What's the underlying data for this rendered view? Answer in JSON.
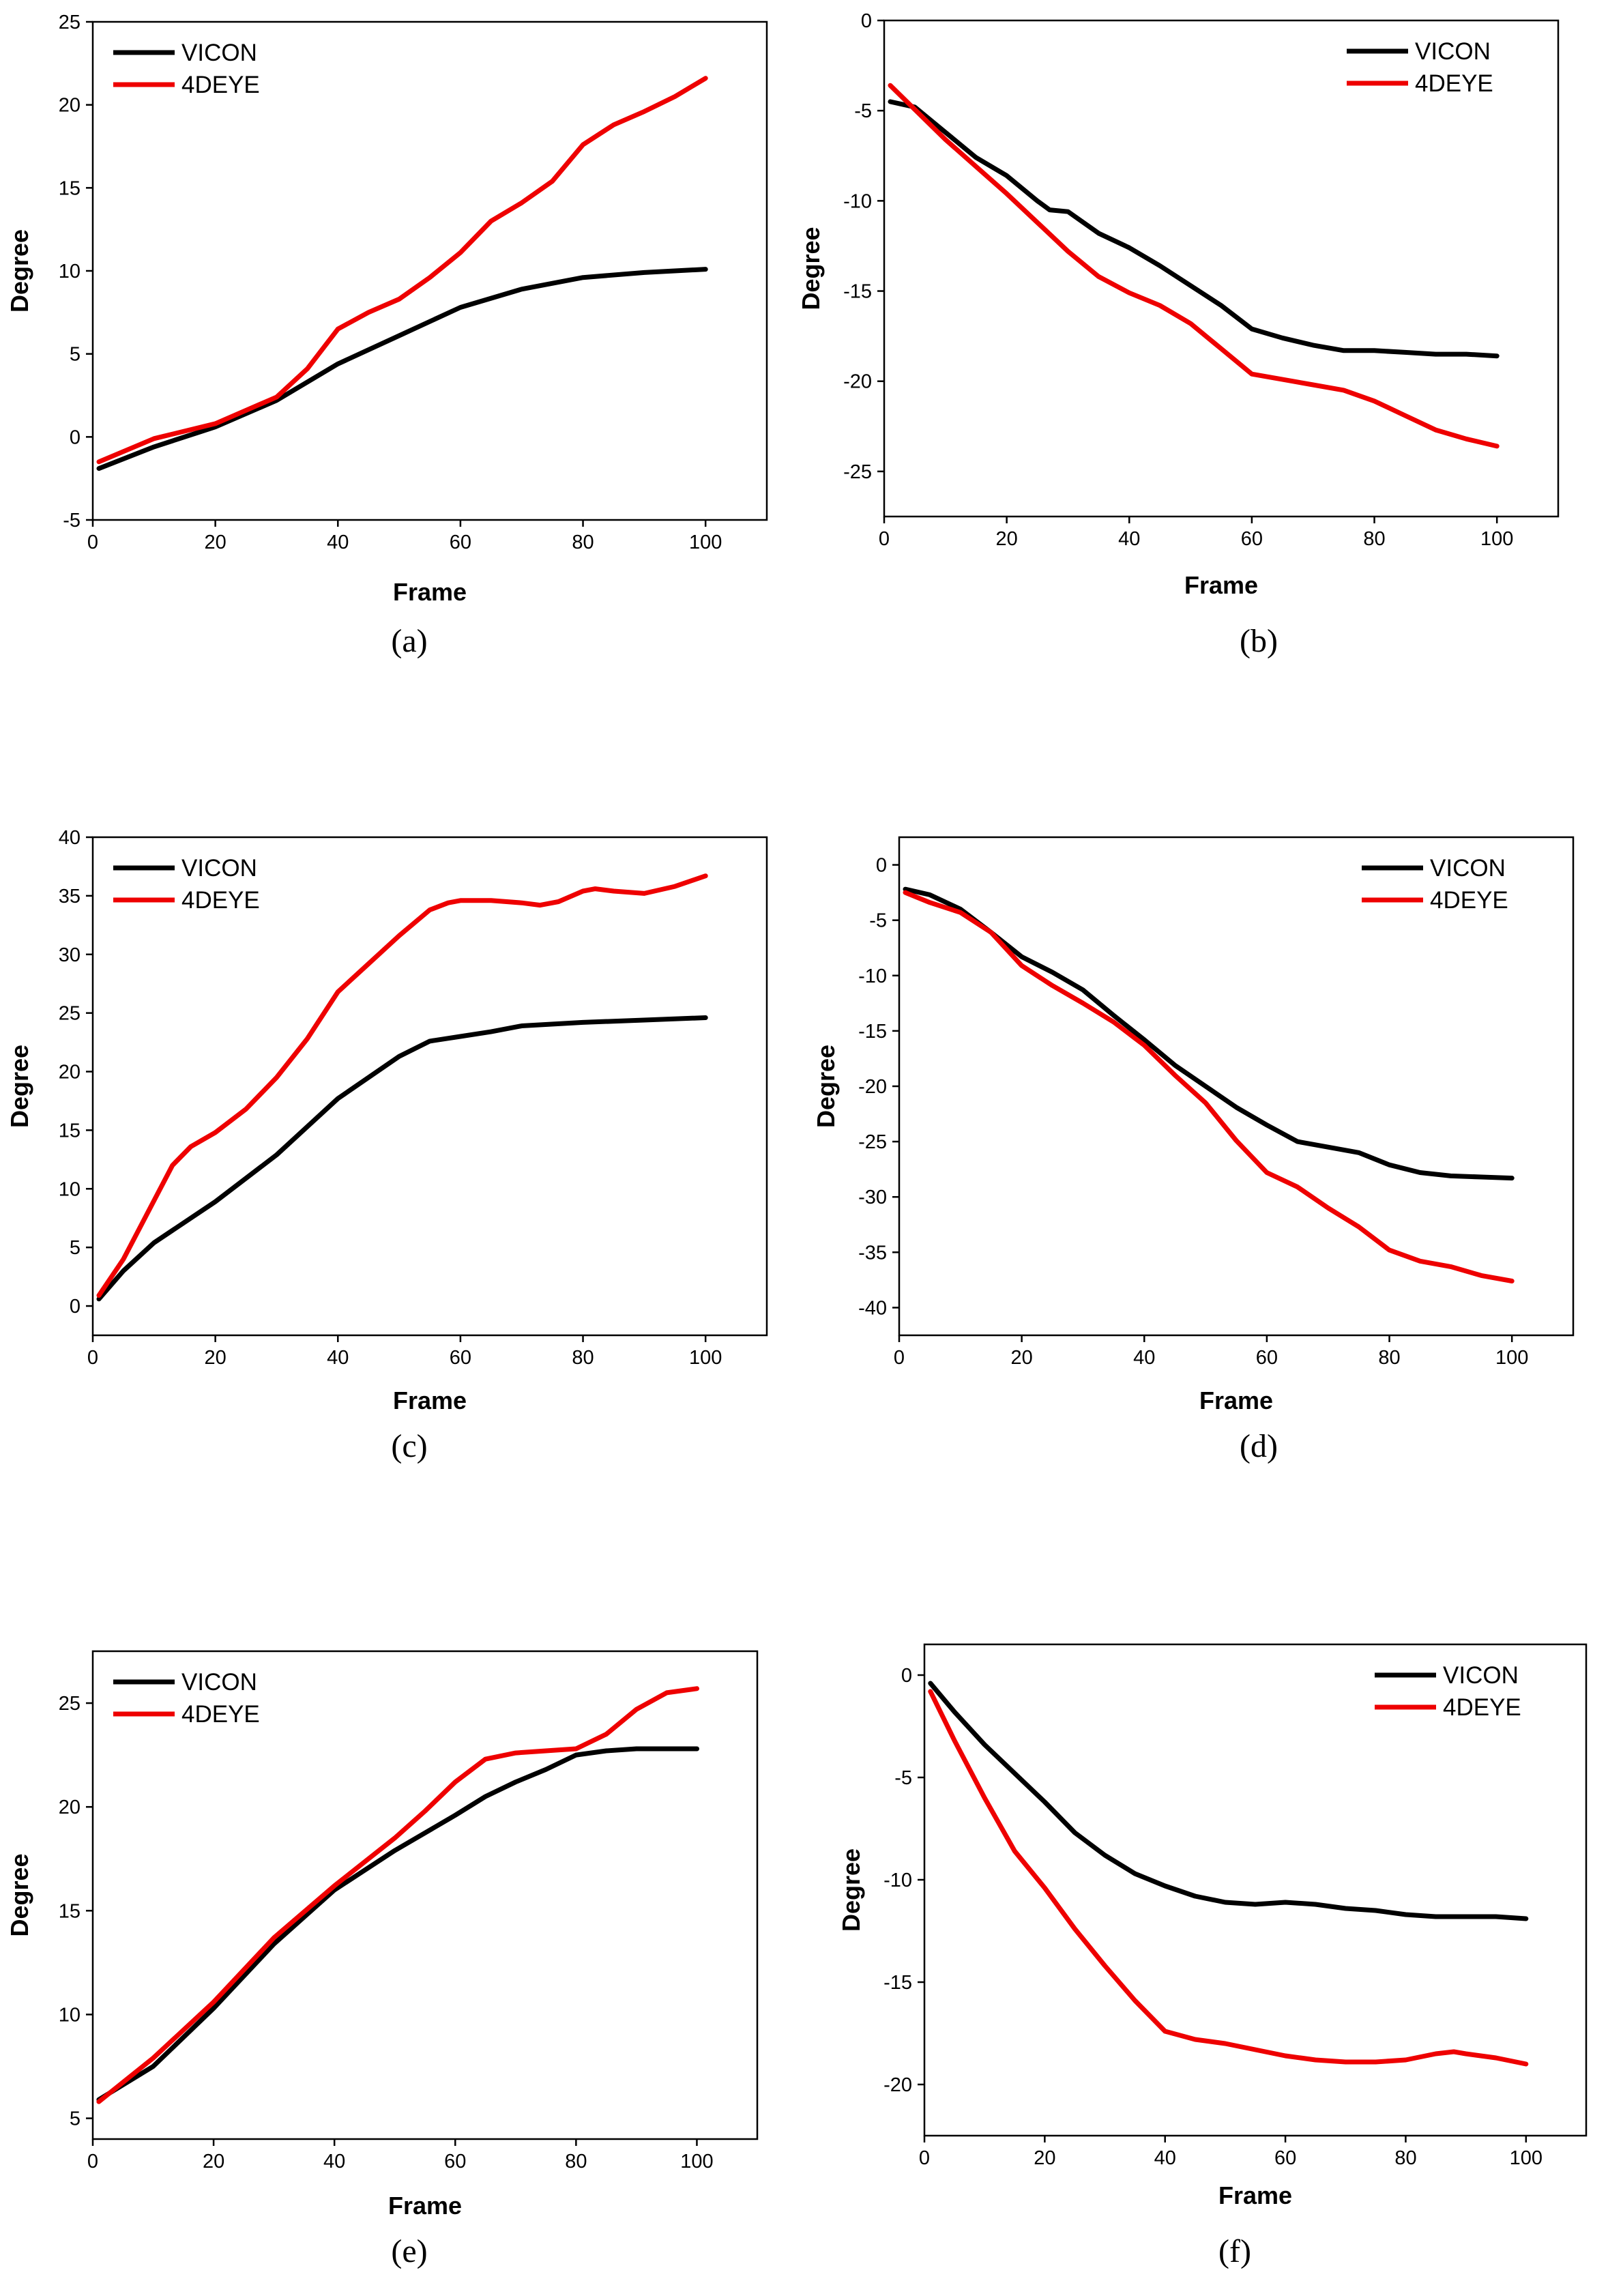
{
  "colors": {
    "VICON": "#000000",
    "4DEYE": "#ee0000"
  },
  "chart_data": [
    {
      "type": "line",
      "caption": "(a)",
      "xlabel": "Frame",
      "ylabel": "Degree",
      "xlim": [
        0,
        110
      ],
      "ylim": [
        -5,
        25
      ],
      "xticks": [
        0,
        20,
        40,
        60,
        80,
        100
      ],
      "yticks": [
        -5,
        0,
        5,
        10,
        15,
        20,
        25
      ],
      "legend_position": "top-left",
      "series": [
        {
          "name": "VICON",
          "x": [
            1,
            10,
            20,
            30,
            40,
            50,
            60,
            70,
            80,
            90,
            100
          ],
          "y": [
            -1.9,
            -0.6,
            0.6,
            2.2,
            4.4,
            6.1,
            7.8,
            8.9,
            9.6,
            9.9,
            10.1
          ]
        },
        {
          "name": "4DEYE",
          "x": [
            1,
            10,
            20,
            30,
            35,
            40,
            45,
            50,
            55,
            60,
            65,
            70,
            75,
            80,
            85,
            90,
            95,
            100
          ],
          "y": [
            -1.5,
            -0.1,
            0.8,
            2.4,
            4.1,
            6.5,
            7.5,
            8.3,
            9.6,
            11.1,
            13.0,
            14.1,
            15.4,
            17.6,
            18.8,
            19.6,
            20.5,
            21.6
          ]
        }
      ]
    },
    {
      "type": "line",
      "caption": "(b)",
      "xlabel": "Frame",
      "ylabel": "Degree",
      "xlim": [
        0,
        110
      ],
      "ylim": [
        -27.5,
        0
      ],
      "xticks": [
        0,
        20,
        40,
        60,
        80,
        100
      ],
      "yticks": [
        0,
        -5,
        -10,
        -15,
        -20,
        -25
      ],
      "legend_position": "top-right",
      "series": [
        {
          "name": "VICON",
          "x": [
            1,
            5,
            10,
            15,
            20,
            25,
            27,
            30,
            35,
            40,
            45,
            50,
            55,
            60,
            65,
            70,
            75,
            80,
            85,
            90,
            95,
            100
          ],
          "y": [
            -4.5,
            -4.8,
            -6.2,
            -7.6,
            -8.6,
            -10.0,
            -10.5,
            -10.6,
            -11.8,
            -12.6,
            -13.6,
            -14.7,
            -15.8,
            -17.1,
            -17.6,
            -18.0,
            -18.3,
            -18.3,
            -18.4,
            -18.5,
            -18.5,
            -18.6
          ]
        },
        {
          "name": "4DEYE",
          "x": [
            1,
            10,
            20,
            30,
            35,
            40,
            45,
            50,
            55,
            60,
            65,
            70,
            75,
            80,
            85,
            90,
            95,
            100
          ],
          "y": [
            -3.6,
            -6.6,
            -9.6,
            -12.8,
            -14.2,
            -15.1,
            -15.8,
            -16.8,
            -18.2,
            -19.6,
            -19.9,
            -20.2,
            -20.5,
            -21.1,
            -21.9,
            -22.7,
            -23.2,
            -23.6
          ]
        }
      ]
    },
    {
      "type": "line",
      "caption": "(c)",
      "xlabel": "Frame",
      "ylabel": "Degree",
      "xlim": [
        0,
        110
      ],
      "ylim": [
        -2.5,
        40
      ],
      "xticks": [
        0,
        20,
        40,
        60,
        80,
        100
      ],
      "yticks": [
        0,
        5,
        10,
        15,
        20,
        25,
        30,
        35,
        40
      ],
      "legend_position": "top-left",
      "series": [
        {
          "name": "VICON",
          "x": [
            1,
            5,
            10,
            20,
            30,
            40,
            50,
            55,
            60,
            65,
            70,
            80,
            90,
            100
          ],
          "y": [
            0.6,
            3.0,
            5.4,
            8.9,
            12.9,
            17.7,
            21.3,
            22.6,
            23.0,
            23.4,
            23.9,
            24.2,
            24.4,
            24.6
          ]
        },
        {
          "name": "4DEYE",
          "x": [
            1,
            5,
            10,
            13,
            16,
            20,
            25,
            30,
            35,
            40,
            45,
            50,
            55,
            58,
            60,
            65,
            70,
            73,
            76,
            80,
            82,
            85,
            90,
            95,
            100
          ],
          "y": [
            0.9,
            4.0,
            9.0,
            12.0,
            13.6,
            14.8,
            16.8,
            19.5,
            22.8,
            26.8,
            29.2,
            31.6,
            33.8,
            34.4,
            34.6,
            34.6,
            34.4,
            34.2,
            34.5,
            35.4,
            35.6,
            35.4,
            35.2,
            35.8,
            36.7
          ]
        }
      ]
    },
    {
      "type": "line",
      "caption": "(d)",
      "xlabel": "Frame",
      "ylabel": "Degree",
      "xlim": [
        0,
        110
      ],
      "ylim": [
        -42.5,
        2.5
      ],
      "xticks": [
        0,
        20,
        40,
        60,
        80,
        100
      ],
      "yticks": [
        0,
        -5,
        -10,
        -15,
        -20,
        -25,
        -30,
        -35,
        -40
      ],
      "legend_position": "top-right",
      "series": [
        {
          "name": "VICON",
          "x": [
            1,
            5,
            10,
            15,
            20,
            25,
            30,
            35,
            40,
            45,
            50,
            55,
            60,
            65,
            70,
            75,
            80,
            85,
            90,
            95,
            100
          ],
          "y": [
            -2.2,
            -2.7,
            -4.0,
            -6.1,
            -8.3,
            -9.7,
            -11.3,
            -13.6,
            -15.8,
            -18.1,
            -20.0,
            -21.9,
            -23.5,
            -25.0,
            -25.5,
            -26.0,
            -27.1,
            -27.8,
            -28.1,
            -28.2,
            -28.3
          ]
        },
        {
          "name": "4DEYE",
          "x": [
            1,
            5,
            10,
            15,
            20,
            25,
            30,
            35,
            40,
            45,
            50,
            55,
            60,
            65,
            70,
            75,
            80,
            85,
            90,
            95,
            100
          ],
          "y": [
            -2.5,
            -3.4,
            -4.3,
            -6.1,
            -9.1,
            -10.9,
            -12.5,
            -14.2,
            -16.3,
            -19.0,
            -21.5,
            -24.9,
            -27.8,
            -29.1,
            -31.0,
            -32.7,
            -34.8,
            -35.8,
            -36.3,
            -37.1,
            -37.6
          ]
        }
      ]
    },
    {
      "type": "line",
      "caption": "(e)",
      "xlabel": "Frame",
      "ylabel": "Degree",
      "xlim": [
        0,
        110
      ],
      "ylim": [
        4,
        27.5
      ],
      "xticks": [
        0,
        20,
        40,
        60,
        80,
        100
      ],
      "yticks": [
        5,
        10,
        15,
        20,
        25
      ],
      "legend_position": "top-left",
      "series": [
        {
          "name": "VICON",
          "x": [
            1,
            10,
            20,
            30,
            40,
            50,
            60,
            65,
            70,
            75,
            80,
            85,
            90,
            95,
            100
          ],
          "y": [
            5.9,
            7.5,
            10.3,
            13.4,
            16.0,
            17.9,
            19.6,
            20.5,
            21.2,
            21.8,
            22.5,
            22.7,
            22.8,
            22.8,
            22.8
          ]
        },
        {
          "name": "4DEYE",
          "x": [
            1,
            10,
            20,
            30,
            40,
            50,
            55,
            60,
            65,
            70,
            75,
            80,
            85,
            90,
            95,
            100
          ],
          "y": [
            5.8,
            7.9,
            10.6,
            13.7,
            16.2,
            18.5,
            19.8,
            21.2,
            22.3,
            22.6,
            22.7,
            22.8,
            23.5,
            24.7,
            25.5,
            25.7
          ]
        }
      ]
    },
    {
      "type": "line",
      "caption": "(f)",
      "xlabel": "Frame",
      "ylabel": "Degree",
      "xlim": [
        0,
        110
      ],
      "ylim": [
        -22.5,
        1.5
      ],
      "xticks": [
        0,
        20,
        40,
        60,
        80,
        100
      ],
      "yticks": [
        0,
        -5,
        -10,
        -15,
        -20
      ],
      "legend_position": "top-right",
      "series": [
        {
          "name": "VICON",
          "x": [
            1,
            5,
            10,
            15,
            20,
            25,
            30,
            35,
            40,
            45,
            50,
            55,
            60,
            65,
            70,
            75,
            80,
            85,
            90,
            95,
            100
          ],
          "y": [
            -0.4,
            -1.8,
            -3.4,
            -4.8,
            -6.2,
            -7.7,
            -8.8,
            -9.7,
            -10.3,
            -10.8,
            -11.1,
            -11.2,
            -11.1,
            -11.2,
            -11.4,
            -11.5,
            -11.7,
            -11.8,
            -11.8,
            -11.8,
            -11.9
          ]
        },
        {
          "name": "4DEYE",
          "x": [
            1,
            5,
            10,
            15,
            20,
            25,
            30,
            35,
            40,
            45,
            50,
            55,
            60,
            65,
            70,
            75,
            80,
            85,
            88,
            90,
            95,
            100
          ],
          "y": [
            -0.8,
            -3.2,
            -6.0,
            -8.6,
            -10.4,
            -12.4,
            -14.2,
            -15.9,
            -17.4,
            -17.8,
            -18.0,
            -18.3,
            -18.6,
            -18.8,
            -18.9,
            -18.9,
            -18.8,
            -18.5,
            -18.4,
            -18.5,
            -18.7,
            -19.0
          ]
        }
      ]
    }
  ]
}
